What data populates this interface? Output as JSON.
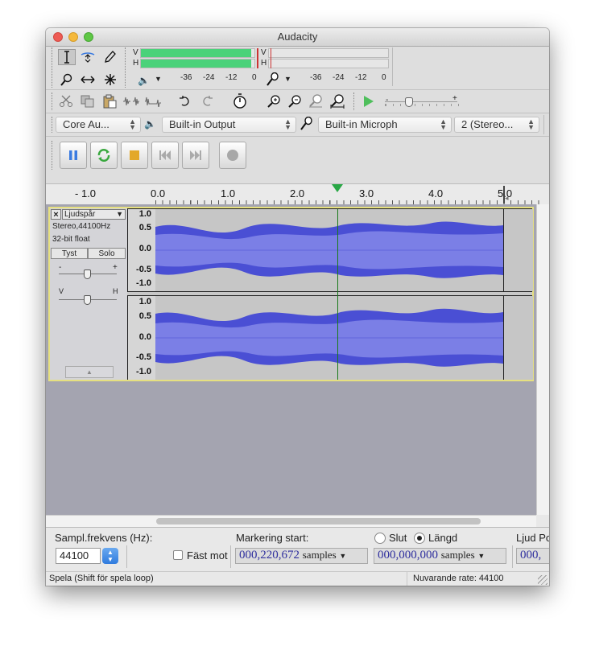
{
  "window": {
    "title": "Audacity"
  },
  "meters": {
    "play": {
      "left_ch": "V",
      "right_ch": "H",
      "ticks": [
        "-36",
        "-24",
        "-12",
        "0"
      ]
    },
    "rec": {
      "left_ch": "V",
      "right_ch": "H",
      "ticks": [
        "-36",
        "-24",
        "-12",
        "0"
      ]
    }
  },
  "device": {
    "host": "Core Au...",
    "output": "Built-in Output",
    "input": "Built-in Microph",
    "channels": "2 (Stereo..."
  },
  "ruler": {
    "labels": [
      "- 1.0",
      "0.0",
      "1.0",
      "2.0",
      "3.0",
      "4.0",
      "5.0"
    ]
  },
  "track": {
    "name": "Ljudspår",
    "format": "Stereo,44100Hz",
    "bits": "32-bit float",
    "mute": "Tyst",
    "solo": "Solo",
    "gain_minus": "-",
    "gain_plus": "+",
    "pan_left": "V",
    "pan_right": "H",
    "scale": [
      "1.0",
      "0.5",
      "0.0",
      "-0.5",
      "-1.0"
    ]
  },
  "selection_bar": {
    "rate_label": "Sampl.frekvens (Hz):",
    "rate_value": "44100",
    "snap_label": "Fäst mot",
    "start_label": "Markering start:",
    "end_label": "Slut",
    "length_label": "Längd",
    "length_selected": true,
    "audio_pos_label": "Ljud Po",
    "start_value": "000,220,672",
    "start_unit": "samples",
    "length_value": "000,000,000",
    "length_unit": "samples",
    "audio_pos_value": "000,"
  },
  "status": {
    "left": "Spela (Shift för spela loop)",
    "right": "Nuvarande rate: 44100"
  },
  "colors": {
    "waveform": "#4a4fd4",
    "waveform_rms": "#7b7fe6",
    "meter_play": "#4ad27a",
    "cursor": "#1a7a1a",
    "track_bg": "#c6c6c6",
    "accent": "#3b7be0"
  }
}
